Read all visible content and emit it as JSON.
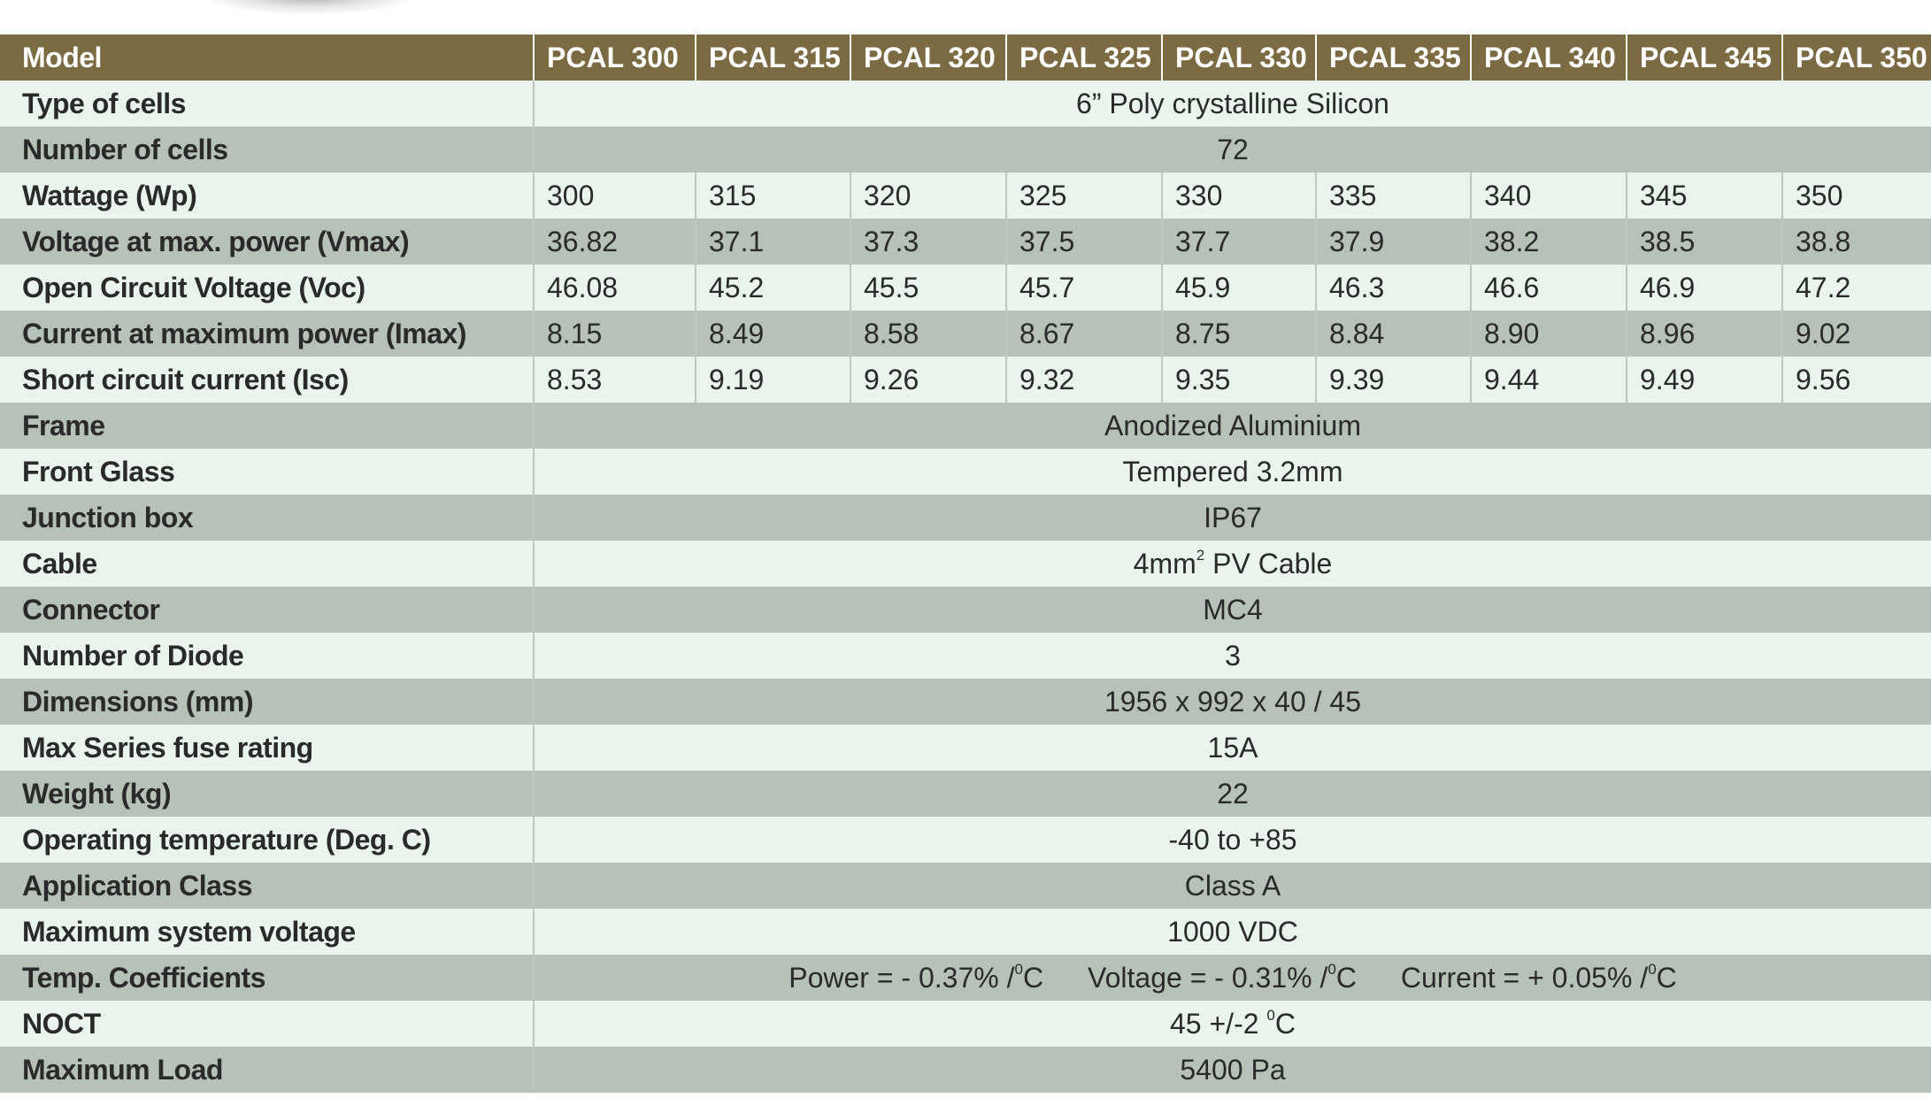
{
  "header": {
    "label": "Model",
    "models": [
      "PCAL 300",
      "PCAL 315",
      "PCAL 320",
      "PCAL 325",
      "PCAL 330",
      "PCAL 335",
      "PCAL 340",
      "PCAL 345",
      "PCAL 350"
    ]
  },
  "rows": {
    "type_of_cells": {
      "label": "Type of cells",
      "value": "6” Poly crystalline Silicon"
    },
    "number_of_cells": {
      "label": "Number of cells",
      "value": "72"
    },
    "wattage": {
      "label": "Wattage (Wp)",
      "values": [
        "300",
        "315",
        "320",
        "325",
        "330",
        "335",
        "340",
        "345",
        "350"
      ]
    },
    "vmax": {
      "label": "Voltage at max. power (Vmax)",
      "values": [
        "36.82",
        "37.1",
        "37.3",
        "37.5",
        "37.7",
        "37.9",
        "38.2",
        "38.5",
        "38.8"
      ]
    },
    "voc": {
      "label": "Open Circuit Voltage (Voc)",
      "values": [
        "46.08",
        "45.2",
        "45.5",
        "45.7",
        "45.9",
        "46.3",
        "46.6",
        "46.9",
        "47.2"
      ]
    },
    "imax": {
      "label": "Current at maximum power (Imax)",
      "values": [
        "8.15",
        "8.49",
        "8.58",
        "8.67",
        "8.75",
        "8.84",
        "8.90",
        "8.96",
        "9.02"
      ]
    },
    "isc": {
      "label": "Short circuit current (Isc)",
      "values": [
        "8.53",
        "9.19",
        "9.26",
        "9.32",
        "9.35",
        "9.39",
        "9.44",
        "9.49",
        "9.56"
      ]
    },
    "frame": {
      "label": "Frame",
      "value": "Anodized Aluminium"
    },
    "front_glass": {
      "label": "Front Glass",
      "value": "Tempered 3.2mm"
    },
    "junction_box": {
      "label": "Junction box",
      "value": "IP67"
    },
    "cable": {
      "label": "Cable",
      "value_pre": "4mm",
      "value_sup": "2",
      "value_post": " PV Cable"
    },
    "connector": {
      "label": "Connector",
      "value": "MC4"
    },
    "diodes": {
      "label": "Number of Diode",
      "value": "3"
    },
    "dimensions": {
      "label": "Dimensions (mm)",
      "value": "1956 x 992 x 40 / 45"
    },
    "fuse": {
      "label": "Max Series fuse rating",
      "value": "15A"
    },
    "weight": {
      "label": "Weight (kg)",
      "value": "22"
    },
    "op_temp": {
      "label": "Operating temperature (Deg. C)",
      "value": "-40 to +85"
    },
    "app_class": {
      "label": "Application Class",
      "value": "Class A"
    },
    "max_sys_voltage": {
      "label": "Maximum system voltage",
      "value": "1000 VDC"
    },
    "temp_coeff": {
      "label": "Temp. Coefficients",
      "power_pre": "Power = - 0.37% /",
      "voltage_pre": "Voltage = - 0.31% /",
      "current_pre": "Current = + 0.05% /",
      "deg_sup": "0",
      "unit": "C"
    },
    "noct": {
      "label": "NOCT",
      "value_pre": "45 +/-2 ",
      "value_sup": "0",
      "value_post": "C"
    },
    "max_load": {
      "label": "Maximum Load",
      "value": "5400 Pa"
    }
  }
}
